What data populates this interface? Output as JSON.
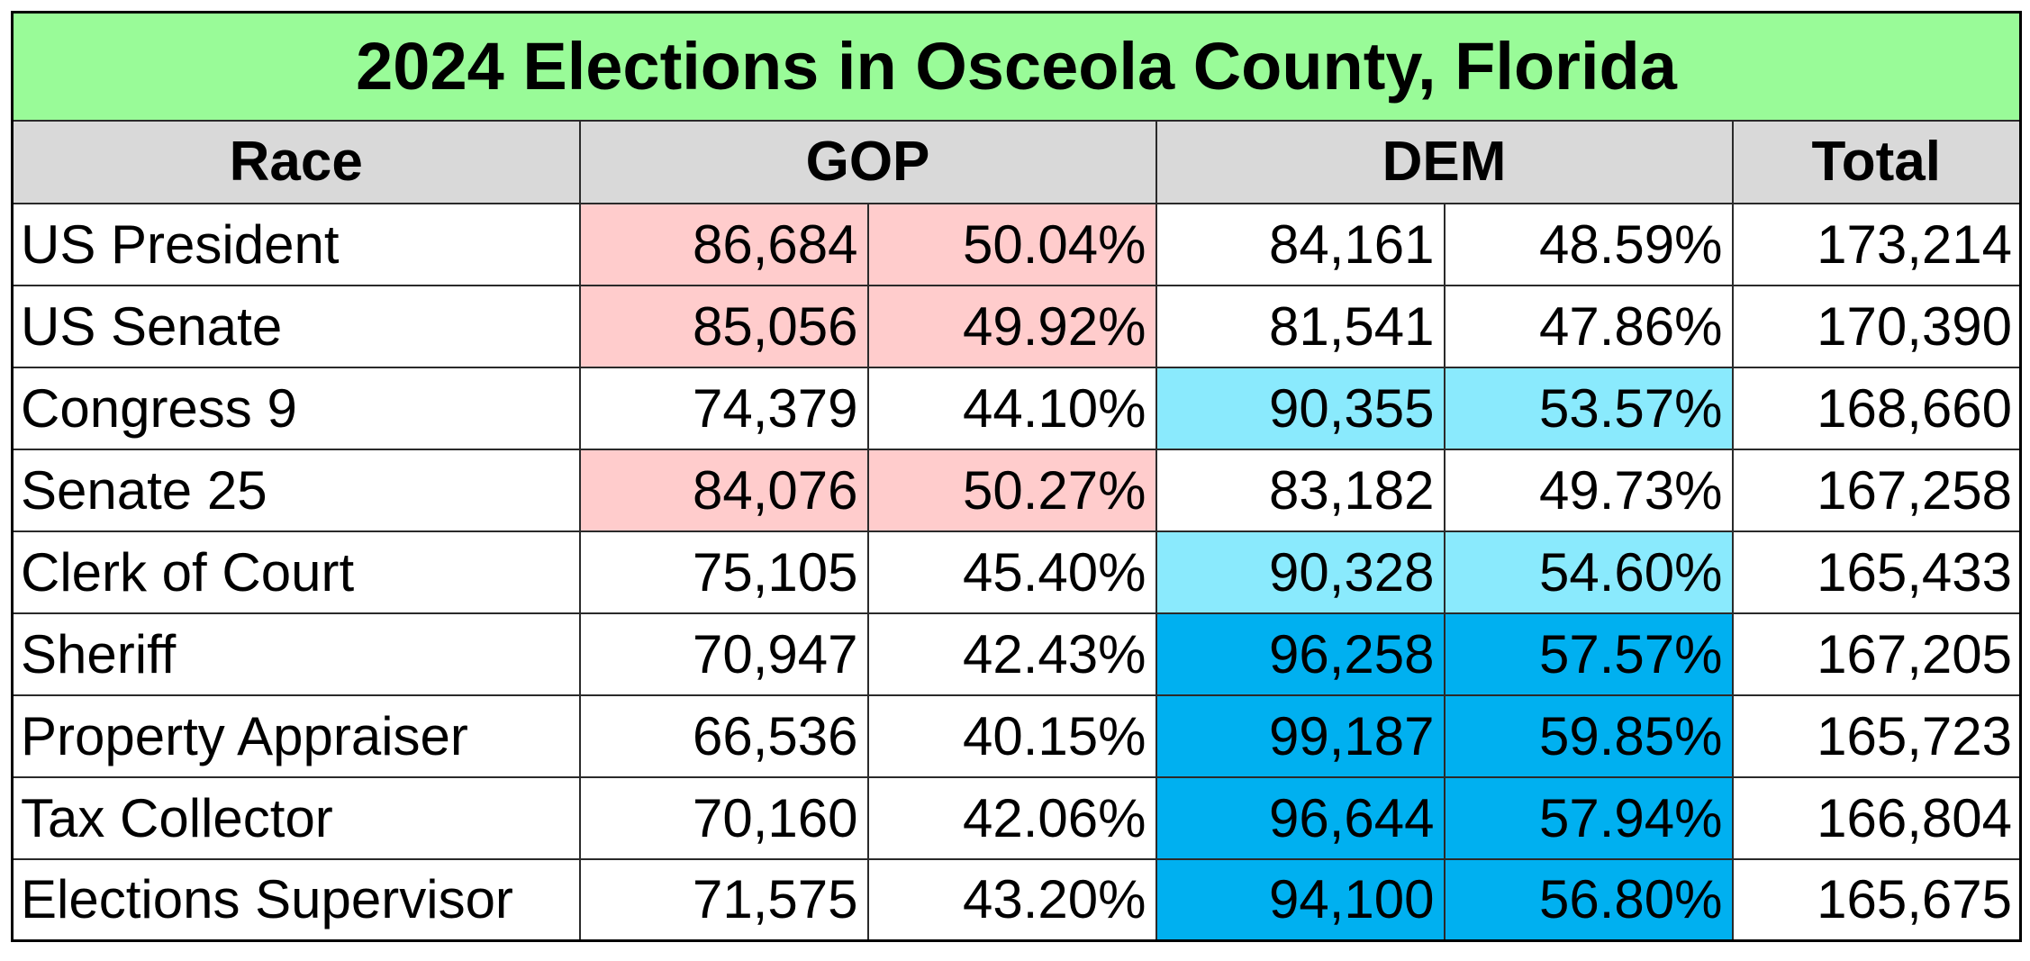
{
  "title": "2024 Elections in Osceola County, Florida",
  "headers": {
    "race": "Race",
    "gop": "GOP",
    "dem": "DEM",
    "total": "Total"
  },
  "colors": {
    "title_bg": "#99fb98",
    "header_bg": "#d9d9d9",
    "gop_win": "#ffcccc",
    "dem_lean": "#8aeafd",
    "dem_strong": "#00b0f0",
    "none": "#ffffff"
  },
  "rows": [
    {
      "race": "US President",
      "gop_votes": "86,684",
      "gop_pct": "50.04%",
      "dem_votes": "84,161",
      "dem_pct": "48.59%",
      "total": "173,214",
      "gop_shade": "gop_win",
      "dem_shade": "none"
    },
    {
      "race": "US Senate",
      "gop_votes": "85,056",
      "gop_pct": "49.92%",
      "dem_votes": "81,541",
      "dem_pct": "47.86%",
      "total": "170,390",
      "gop_shade": "gop_win",
      "dem_shade": "none"
    },
    {
      "race": "Congress 9",
      "gop_votes": "74,379",
      "gop_pct": "44.10%",
      "dem_votes": "90,355",
      "dem_pct": "53.57%",
      "total": "168,660",
      "gop_shade": "none",
      "dem_shade": "dem_lean"
    },
    {
      "race": "Senate 25",
      "gop_votes": "84,076",
      "gop_pct": "50.27%",
      "dem_votes": "83,182",
      "dem_pct": "49.73%",
      "total": "167,258",
      "gop_shade": "gop_win",
      "dem_shade": "none"
    },
    {
      "race": "Clerk of Court",
      "gop_votes": "75,105",
      "gop_pct": "45.40%",
      "dem_votes": "90,328",
      "dem_pct": "54.60%",
      "total": "165,433",
      "gop_shade": "none",
      "dem_shade": "dem_lean"
    },
    {
      "race": "Sheriff",
      "gop_votes": "70,947",
      "gop_pct": "42.43%",
      "dem_votes": "96,258",
      "dem_pct": "57.57%",
      "total": "167,205",
      "gop_shade": "none",
      "dem_shade": "dem_strong"
    },
    {
      "race": "Property Appraiser",
      "gop_votes": "66,536",
      "gop_pct": "40.15%",
      "dem_votes": "99,187",
      "dem_pct": "59.85%",
      "total": "165,723",
      "gop_shade": "none",
      "dem_shade": "dem_strong"
    },
    {
      "race": "Tax Collector",
      "gop_votes": "70,160",
      "gop_pct": "42.06%",
      "dem_votes": "96,644",
      "dem_pct": "57.94%",
      "total": "166,804",
      "gop_shade": "none",
      "dem_shade": "dem_strong"
    },
    {
      "race": "Elections Supervisor",
      "gop_votes": "71,575",
      "gop_pct": "43.20%",
      "dem_votes": "94,100",
      "dem_pct": "56.80%",
      "total": "165,675",
      "gop_shade": "none",
      "dem_shade": "dem_strong"
    }
  ]
}
